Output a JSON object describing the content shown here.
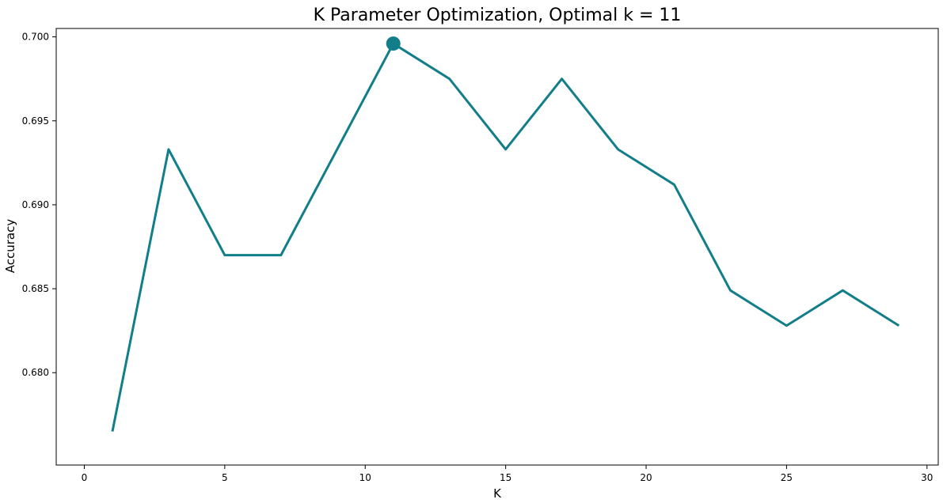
{
  "chart_data": {
    "type": "line",
    "title": "K Parameter Optimization, Optimal k = 11",
    "xlabel": "K",
    "ylabel": "Accuracy",
    "xlim": [
      -1,
      30.4
    ],
    "ylim": [
      0.6745,
      0.7005
    ],
    "xticks": [
      0,
      5,
      10,
      15,
      20,
      25,
      30
    ],
    "xtick_labels": [
      "0",
      "5",
      "10",
      "15",
      "20",
      "25",
      "30"
    ],
    "yticks": [
      0.68,
      0.685,
      0.69,
      0.695,
      0.7
    ],
    "ytick_labels": [
      "0.680",
      "0.685",
      "0.690",
      "0.695",
      "0.700"
    ],
    "grid": false,
    "series": [
      {
        "x": [
          1,
          3,
          5,
          7,
          9,
          11,
          13,
          15,
          17,
          19,
          21,
          23,
          25,
          27,
          29
        ],
        "values": [
          0.6765,
          0.6933,
          0.687,
          0.687,
          0.6933,
          0.6996,
          0.6975,
          0.6933,
          0.6975,
          0.6933,
          0.6912,
          0.6849,
          0.6828,
          0.6849,
          0.6828
        ],
        "color": "#127e8a"
      }
    ],
    "highlight": {
      "x": 11,
      "y": 0.6996,
      "color": "#127e8a"
    }
  }
}
